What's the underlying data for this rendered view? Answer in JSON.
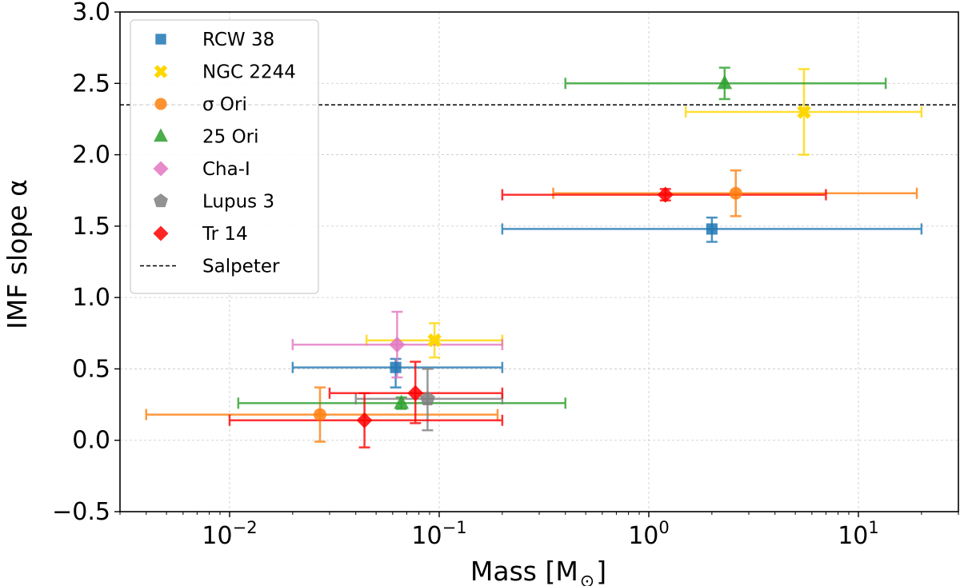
{
  "chart_data": {
    "type": "scatter",
    "xlabel": "Mass [M",
    "xlabel_sub": "⊙",
    "xlabel_close": "]",
    "ylabel": "IMF slope α",
    "x_scale": "log",
    "xlim": [
      0.003,
      30
    ],
    "ylim": [
      -0.5,
      3.0
    ],
    "grid": true,
    "legend_position": "upper-left",
    "y_ticks": [
      {
        "value": -0.5,
        "label": "−0.5"
      },
      {
        "value": 0.0,
        "label": "0.0"
      },
      {
        "value": 0.5,
        "label": "0.5"
      },
      {
        "value": 1.0,
        "label": "1.0"
      },
      {
        "value": 1.5,
        "label": "1.5"
      },
      {
        "value": 2.0,
        "label": "2.0"
      },
      {
        "value": 2.5,
        "label": "2.5"
      },
      {
        "value": 3.0,
        "label": "3.0"
      }
    ],
    "x_ticks": [
      {
        "value": 0.01,
        "base": "10",
        "exp": "−2"
      },
      {
        "value": 0.1,
        "base": "10",
        "exp": "−1"
      },
      {
        "value": 1,
        "base": "10",
        "exp": "0"
      },
      {
        "value": 10,
        "base": "10",
        "exp": "1"
      }
    ],
    "series": [
      {
        "name": "RCW 38",
        "marker": "square",
        "color": "#1f77b4",
        "points": [
          {
            "x": 0.062,
            "y": 0.51,
            "xmin": 0.02,
            "xmax": 0.2,
            "ylow": 0.37,
            "yhigh": 0.57
          },
          {
            "x": 2.0,
            "y": 1.48,
            "xmin": 0.2,
            "xmax": 20,
            "ylow": 1.39,
            "yhigh": 1.56
          }
        ]
      },
      {
        "name": "NGC 2244",
        "marker": "x",
        "color": "#ffd700",
        "points": [
          {
            "x": 0.095,
            "y": 0.7,
            "xmin": 0.045,
            "xmax": 0.2,
            "ylow": 0.58,
            "yhigh": 0.82
          },
          {
            "x": 5.5,
            "y": 2.3,
            "xmin": 1.5,
            "xmax": 20,
            "ylow": 2.0,
            "yhigh": 2.6
          }
        ]
      },
      {
        "name": "σ Ori",
        "marker": "circle",
        "color": "#ff7f0e",
        "points": [
          {
            "x": 0.027,
            "y": 0.18,
            "xmin": 0.004,
            "xmax": 0.19,
            "ylow": -0.01,
            "yhigh": 0.37
          },
          {
            "x": 2.6,
            "y": 1.73,
            "xmin": 0.35,
            "xmax": 19,
            "ylow": 1.57,
            "yhigh": 1.89
          }
        ]
      },
      {
        "name": "25 Ori",
        "marker": "triangle",
        "color": "#2ca02c",
        "points": [
          {
            "x": 0.066,
            "y": 0.26,
            "xmin": 0.011,
            "xmax": 0.4,
            "ylow": 0.22,
            "yhigh": 0.3
          },
          {
            "x": 2.3,
            "y": 2.5,
            "xmin": 0.4,
            "xmax": 13.5,
            "ylow": 2.39,
            "yhigh": 2.61
          }
        ]
      },
      {
        "name": "Cha-I",
        "marker": "diamond",
        "color": "#e377c2",
        "points": [
          {
            "x": 0.063,
            "y": 0.67,
            "xmin": 0.02,
            "xmax": 0.2,
            "ylow": 0.44,
            "yhigh": 0.9
          }
        ]
      },
      {
        "name": "Lupus 3",
        "marker": "pentagon",
        "color": "#7f7f7f",
        "points": [
          {
            "x": 0.088,
            "y": 0.29,
            "xmin": 0.04,
            "xmax": 0.2,
            "ylow": 0.07,
            "yhigh": 0.5
          }
        ]
      },
      {
        "name": "Tr 14",
        "marker": "diamond",
        "color": "#ff0000",
        "points": [
          {
            "x": 0.044,
            "y": 0.14,
            "xmin": 0.01,
            "xmax": 0.2,
            "ylow": -0.05,
            "yhigh": 0.33
          },
          {
            "x": 0.077,
            "y": 0.33,
            "xmin": 0.03,
            "xmax": 0.2,
            "ylow": 0.12,
            "yhigh": 0.55
          },
          {
            "x": 1.2,
            "y": 1.72,
            "xmin": 0.2,
            "xmax": 7.0,
            "ylow": 1.68,
            "yhigh": 1.76
          }
        ]
      }
    ],
    "reference_lines": [
      {
        "name": "Salpeter",
        "y": 2.35,
        "style": "dashed",
        "color": "#000000"
      }
    ]
  }
}
